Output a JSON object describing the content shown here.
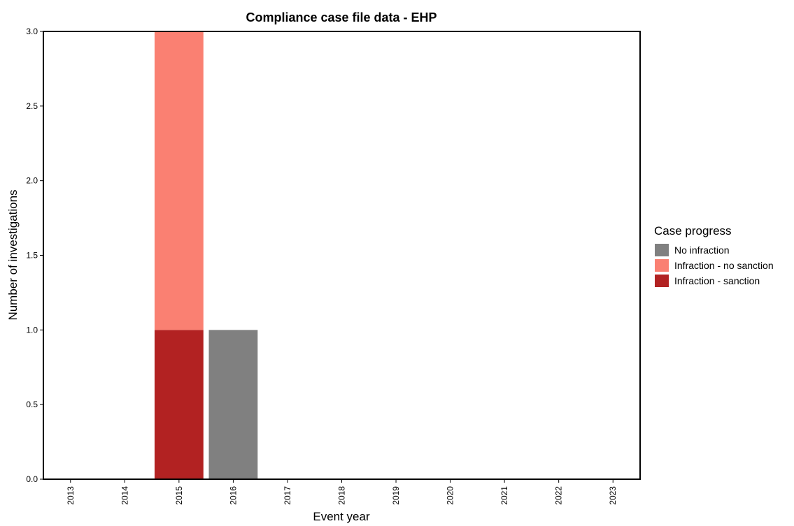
{
  "chart_data": {
    "type": "bar",
    "stacked": true,
    "title": "Compliance case file data - EHP",
    "xlabel": "Event year",
    "ylabel": "Number of investigations",
    "categories": [
      "2013",
      "2014",
      "2015",
      "2016",
      "2017",
      "2018",
      "2019",
      "2020",
      "2021",
      "2022",
      "2023"
    ],
    "ylim": [
      0,
      3
    ],
    "yticks": [
      "0.0",
      "0.5",
      "1.0",
      "1.5",
      "2.0",
      "2.5",
      "3.0"
    ],
    "grid": false,
    "legend_title": "Case progress",
    "legend_position": "right",
    "series": [
      {
        "name": "Infraction - sanction",
        "color": "#b22222",
        "values": [
          0,
          0,
          1,
          0,
          0,
          0,
          0,
          0,
          0,
          0,
          0
        ]
      },
      {
        "name": "Infraction - no sanction",
        "color": "#fa8072",
        "values": [
          0,
          0,
          2,
          0,
          0,
          0,
          0,
          0,
          0,
          0,
          0
        ]
      },
      {
        "name": "No infraction",
        "color": "#808080",
        "values": [
          0,
          0,
          0,
          1,
          0,
          0,
          0,
          0,
          0,
          0,
          0
        ]
      }
    ],
    "legend_order": [
      "No infraction",
      "Infraction - no sanction",
      "Infraction - sanction"
    ]
  }
}
